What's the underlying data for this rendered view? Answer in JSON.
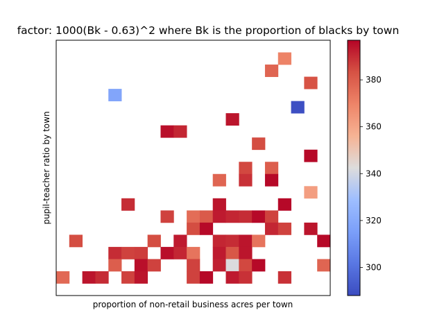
{
  "chart_data": {
    "type": "heatmap",
    "title": "factor: 1000(Bk - 0.63)^2 where Bk is the proportion of blacks by town",
    "xlabel": "proportion of non-retail business acres per town",
    "ylabel": "pupil-teacher ratio by town",
    "grid": false,
    "colormap": "coolwarm",
    "colorbar": {
      "range": [
        288,
        396.9
      ],
      "ticks": [
        300,
        320,
        340,
        360,
        380
      ],
      "tick_labels": [
        "300",
        "320",
        "340",
        "360",
        "380"
      ]
    },
    "n_cols": 20,
    "n_rows": 20,
    "cells": [
      {
        "col": 17,
        "row": 19,
        "value": 370
      },
      {
        "col": 16,
        "row": 18,
        "value": 378
      },
      {
        "col": 19,
        "row": 17,
        "value": 383
      },
      {
        "col": 4,
        "row": 16,
        "value": 318
      },
      {
        "col": 18,
        "row": 15,
        "value": 289
      },
      {
        "col": 13,
        "row": 14,
        "value": 394
      },
      {
        "col": 8,
        "row": 13,
        "value": 395
      },
      {
        "col": 9,
        "row": 13,
        "value": 391
      },
      {
        "col": 15,
        "row": 12,
        "value": 384
      },
      {
        "col": 19,
        "row": 11,
        "value": 396
      },
      {
        "col": 14,
        "row": 10,
        "value": 385
      },
      {
        "col": 16,
        "row": 10,
        "value": 380
      },
      {
        "col": 12,
        "row": 9,
        "value": 378
      },
      {
        "col": 14,
        "row": 9,
        "value": 389
      },
      {
        "col": 16,
        "row": 9,
        "value": 396
      },
      {
        "col": 19,
        "row": 8,
        "value": 362
      },
      {
        "col": 5,
        "row": 7,
        "value": 390
      },
      {
        "col": 12,
        "row": 7,
        "value": 394
      },
      {
        "col": 17,
        "row": 7,
        "value": 396
      },
      {
        "col": 8,
        "row": 6,
        "value": 386
      },
      {
        "col": 10,
        "row": 6,
        "value": 376
      },
      {
        "col": 11,
        "row": 6,
        "value": 381
      },
      {
        "col": 12,
        "row": 6,
        "value": 393
      },
      {
        "col": 13,
        "row": 6,
        "value": 391
      },
      {
        "col": 14,
        "row": 6,
        "value": 390
      },
      {
        "col": 15,
        "row": 6,
        "value": 396
      },
      {
        "col": 16,
        "row": 6,
        "value": 386
      },
      {
        "col": 10,
        "row": 5,
        "value": 384
      },
      {
        "col": 11,
        "row": 5,
        "value": 396
      },
      {
        "col": 16,
        "row": 5,
        "value": 391
      },
      {
        "col": 17,
        "row": 5,
        "value": 386
      },
      {
        "col": 19,
        "row": 5,
        "value": 394
      },
      {
        "col": 1,
        "row": 4,
        "value": 384
      },
      {
        "col": 7,
        "row": 4,
        "value": 384
      },
      {
        "col": 9,
        "row": 4,
        "value": 393
      },
      {
        "col": 12,
        "row": 4,
        "value": 391
      },
      {
        "col": 13,
        "row": 4,
        "value": 390
      },
      {
        "col": 14,
        "row": 4,
        "value": 394
      },
      {
        "col": 15,
        "row": 4,
        "value": 374
      },
      {
        "col": 20,
        "row": 4,
        "value": 396
      },
      {
        "col": 4,
        "row": 3,
        "value": 390
      },
      {
        "col": 5,
        "row": 3,
        "value": 386
      },
      {
        "col": 6,
        "row": 3,
        "value": 387
      },
      {
        "col": 8,
        "row": 3,
        "value": 395
      },
      {
        "col": 9,
        "row": 3,
        "value": 391
      },
      {
        "col": 10,
        "row": 3,
        "value": 374
      },
      {
        "col": 12,
        "row": 3,
        "value": 393
      },
      {
        "col": 13,
        "row": 3,
        "value": 382
      },
      {
        "col": 14,
        "row": 3,
        "value": 394
      },
      {
        "col": 4,
        "row": 2,
        "value": 380
      },
      {
        "col": 6,
        "row": 2,
        "value": 395
      },
      {
        "col": 7,
        "row": 2,
        "value": 386
      },
      {
        "col": 10,
        "row": 2,
        "value": 386
      },
      {
        "col": 12,
        "row": 2,
        "value": 392
      },
      {
        "col": 13,
        "row": 2,
        "value": 342
      },
      {
        "col": 14,
        "row": 2,
        "value": 385
      },
      {
        "col": 15,
        "row": 2,
        "value": 396
      },
      {
        "col": 20,
        "row": 2,
        "value": 378
      },
      {
        "col": 0,
        "row": 1,
        "value": 377
      },
      {
        "col": 2,
        "row": 1,
        "value": 394
      },
      {
        "col": 3,
        "row": 1,
        "value": 390
      },
      {
        "col": 5,
        "row": 1,
        "value": 386
      },
      {
        "col": 6,
        "row": 1,
        "value": 394
      },
      {
        "col": 10,
        "row": 1,
        "value": 386
      },
      {
        "col": 11,
        "row": 1,
        "value": 396
      },
      {
        "col": 13,
        "row": 1,
        "value": 393
      },
      {
        "col": 14,
        "row": 1,
        "value": 389
      },
      {
        "col": 17,
        "row": 1,
        "value": 389
      }
    ]
  }
}
